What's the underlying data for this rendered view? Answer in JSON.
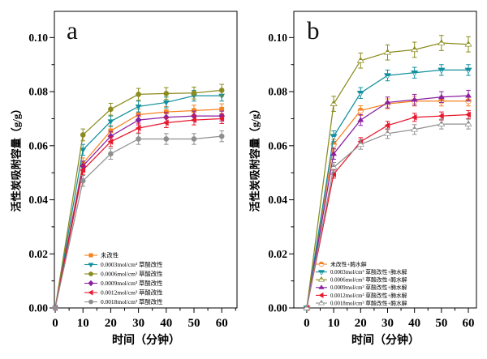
{
  "chart_data": [
    {
      "type": "line",
      "panel_label": "a",
      "xlabel": "时间（分钟）",
      "ylabel": "活性炭吸附容量（g/g）",
      "x": [
        0,
        10,
        20,
        30,
        40,
        50,
        60
      ],
      "xticks": [
        0,
        10,
        20,
        30,
        40,
        50,
        60
      ],
      "x_minor_step": 5,
      "yticks": [
        0,
        0.02,
        0.04,
        0.06,
        0.08,
        0.1
      ],
      "ytick_labels": [
        "0.00",
        "0.02",
        "0.04",
        "0.06",
        "0.08",
        "0.10"
      ],
      "y_minor_step": 0.01,
      "xlim": [
        -0.3,
        65.5
      ],
      "ylim": [
        0,
        0.1097
      ],
      "grid": false,
      "legend_position": "inside-lower-left",
      "series": [
        {
          "name": "未改性",
          "color": "#F58220",
          "marker": "square",
          "err": 0.002,
          "values": [
            0,
            0.0535,
            0.0655,
            0.0715,
            0.0725,
            0.073,
            0.0735
          ]
        },
        {
          "name": "0.0003mol/cm³ 草酸改性",
          "color": "#12909D",
          "marker": "triangle-down",
          "err": 0.002,
          "values": [
            0,
            0.0585,
            0.069,
            0.0745,
            0.076,
            0.0785,
            0.0785
          ]
        },
        {
          "name": "0.0006mol/cm³ 草酸改性",
          "color": "#8B8B1E",
          "marker": "circle",
          "err": 0.0022,
          "values": [
            0,
            0.064,
            0.0735,
            0.079,
            0.0793,
            0.0795,
            0.0805
          ]
        },
        {
          "name": "0.0009mol/cm³ 草酸改性",
          "color": "#8A1FA0",
          "marker": "diamond",
          "err": 0.0018,
          "values": [
            0,
            0.0525,
            0.0635,
            0.0695,
            0.0705,
            0.071,
            0.071
          ]
        },
        {
          "name": "0.0012mol/cm³ 草酸改性",
          "color": "#E8192D",
          "marker": "triangle-left",
          "err": 0.0018,
          "values": [
            0,
            0.051,
            0.0615,
            0.0665,
            0.0685,
            0.0695,
            0.07
          ]
        },
        {
          "name": "0.0018mol/cm³ 草酸改性",
          "color": "#8F8F8F",
          "marker": "circle",
          "err": 0.002,
          "values": [
            0,
            0.047,
            0.057,
            0.0625,
            0.0625,
            0.0625,
            0.0635
          ]
        }
      ]
    },
    {
      "type": "line",
      "panel_label": "b",
      "xlabel": "时间（分钟）",
      "ylabel": "活性炭吸附容量（g/g）",
      "x": [
        0,
        10,
        20,
        30,
        40,
        50,
        60
      ],
      "xticks": [
        0,
        10,
        20,
        30,
        40,
        50,
        60
      ],
      "x_minor_step": 5,
      "yticks": [
        0,
        0.02,
        0.04,
        0.06,
        0.08,
        0.1
      ],
      "ytick_labels": [
        "0.00",
        "0.02",
        "0.04",
        "0.06",
        "0.08",
        "0.10"
      ],
      "y_minor_step": 0.01,
      "xlim": [
        -4.8,
        63.0
      ],
      "ylim": [
        0,
        0.1097
      ],
      "grid": false,
      "legend_position": "inside-lower-left",
      "series": [
        {
          "name": "未改性+酶水解",
          "color": "#F58220",
          "marker": "circle-half",
          "err": 0.0018,
          "values": [
            0,
            0.0605,
            0.073,
            0.0755,
            0.0765,
            0.0765,
            0.0765
          ]
        },
        {
          "name": "0.0003mol/cm³ 草酸改性+酶水解",
          "color": "#12909D",
          "marker": "triangle-down-half",
          "err": 0.002,
          "values": [
            0,
            0.0635,
            0.0795,
            0.086,
            0.087,
            0.088,
            0.088
          ]
        },
        {
          "name": "0.0006mol/cm³ 草酸改性+酶水解",
          "color": "#8B8B1E",
          "marker": "triangle-up-half",
          "err": 0.0028,
          "values": [
            0,
            0.0755,
            0.0915,
            0.0945,
            0.0955,
            0.098,
            0.0975
          ]
        },
        {
          "name": "0.0009mol/cm³ 草酸改性+酶水解",
          "color": "#8A1FA0",
          "marker": "triangle-up",
          "err": 0.002,
          "values": [
            0,
            0.057,
            0.0695,
            0.076,
            0.077,
            0.078,
            0.0785
          ]
        },
        {
          "name": "0.0012mol/cm³ 草酸改性+酶水解",
          "color": "#E8192D",
          "marker": "triangle-left",
          "err": 0.0015,
          "values": [
            0,
            0.0495,
            0.0615,
            0.0675,
            0.0705,
            0.071,
            0.0715
          ]
        },
        {
          "name": "0.0018mol/cm³ 草酸改性+酶水解",
          "color": "#8F8F8F",
          "marker": "triangle-up-half",
          "err": 0.0018,
          "values": [
            0,
            0.052,
            0.0605,
            0.0645,
            0.066,
            0.068,
            0.068
          ]
        }
      ]
    }
  ]
}
